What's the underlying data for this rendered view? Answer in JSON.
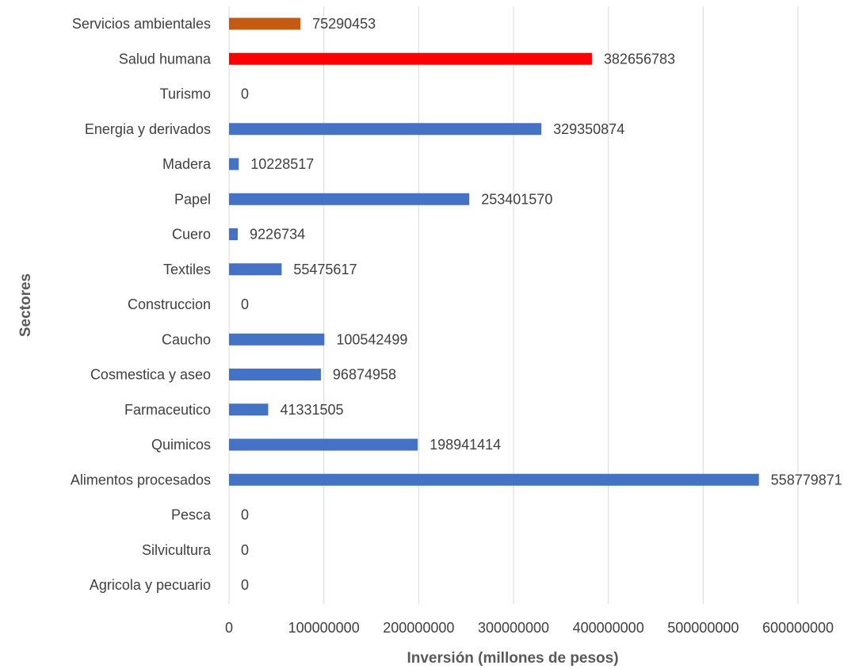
{
  "chart_data": {
    "type": "bar",
    "orientation": "horizontal",
    "xlabel": "Inversión (millones de pesos)",
    "ylabel": "Sectores",
    "xlim": [
      0,
      600000000
    ],
    "xticks": [
      0,
      100000000,
      200000000,
      300000000,
      400000000,
      500000000,
      600000000
    ],
    "grid": true,
    "legend": "none",
    "categories": [
      "Servicios ambientales",
      "Salud humana",
      "Turismo",
      "Energia y derivados",
      "Madera",
      "Papel",
      "Cuero",
      "Textiles",
      "Construccion",
      "Caucho",
      "Cosmestica y aseo",
      "Farmaceutico",
      "Quimicos",
      "Alimentos procesados",
      "Pesca",
      "Silvicultura",
      "Agricola y pecuario"
    ],
    "values": [
      75290453,
      382656783,
      0,
      329350874,
      10228517,
      253401570,
      9226734,
      55475617,
      0,
      100542499,
      96874958,
      41331505,
      198941414,
      558779871,
      0,
      0,
      0
    ],
    "colors": [
      "#c55a11",
      "#ff0000",
      "#4472c4",
      "#4472c4",
      "#4472c4",
      "#4472c4",
      "#4472c4",
      "#4472c4",
      "#4472c4",
      "#4472c4",
      "#4472c4",
      "#4472c4",
      "#4472c4",
      "#4472c4",
      "#4472c4",
      "#4472c4",
      "#4472c4"
    ]
  }
}
